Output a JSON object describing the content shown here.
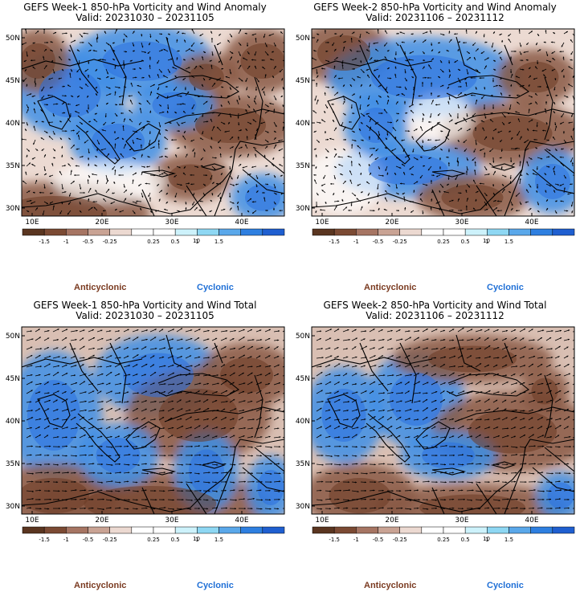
{
  "panels": [
    {
      "title": "GEFS Week-1 850-hPa Vorticity and Wind Anomaly",
      "valid": "Valid: 20231030 – 20231105",
      "mode": "anomaly",
      "seed": 3
    },
    {
      "title": "GEFS Week-2 850-hPa Vorticity and Wind Anomaly",
      "valid": "Valid: 20231106 – 20231112",
      "mode": "anomaly",
      "seed": 7
    },
    {
      "title": "GEFS Week-1 850-hPa Vorticity and Wind Total",
      "valid": "Valid: 20231030 – 20231105",
      "mode": "total",
      "seed": 11
    },
    {
      "title": "GEFS Week-2 850-hPa Vorticity and Wind Total",
      "valid": "Valid: 20231106 – 20231112",
      "mode": "total",
      "seed": 17
    }
  ],
  "lat_labels": [
    "50N",
    "45N",
    "40N",
    "35N",
    "30N"
  ],
  "lon_labels": [
    "10E",
    "20E",
    "30E",
    "40E"
  ],
  "colorbar": {
    "labels": [
      "-1.5",
      "-1",
      "-0.5",
      "-0.25",
      "0.25",
      "0.5",
      "1",
      "1.5"
    ],
    "scale_flag": "10",
    "colors": [
      "#5a3520",
      "#7b4a33",
      "#a67563",
      "#c9a394",
      "#ecd9d1",
      "#ffffff",
      "#ffffff",
      "#cdf2fb",
      "#8ed7f3",
      "#5aa8ea",
      "#2e7fe0",
      "#1f5fd0"
    ]
  },
  "legend": {
    "anticyclonic": "Anticyclonic",
    "cyclonic": "Cyclonic"
  },
  "colors": {
    "anticyclonic_text": "#7a3a20",
    "cyclonic_text": "#1f6fd6"
  }
}
